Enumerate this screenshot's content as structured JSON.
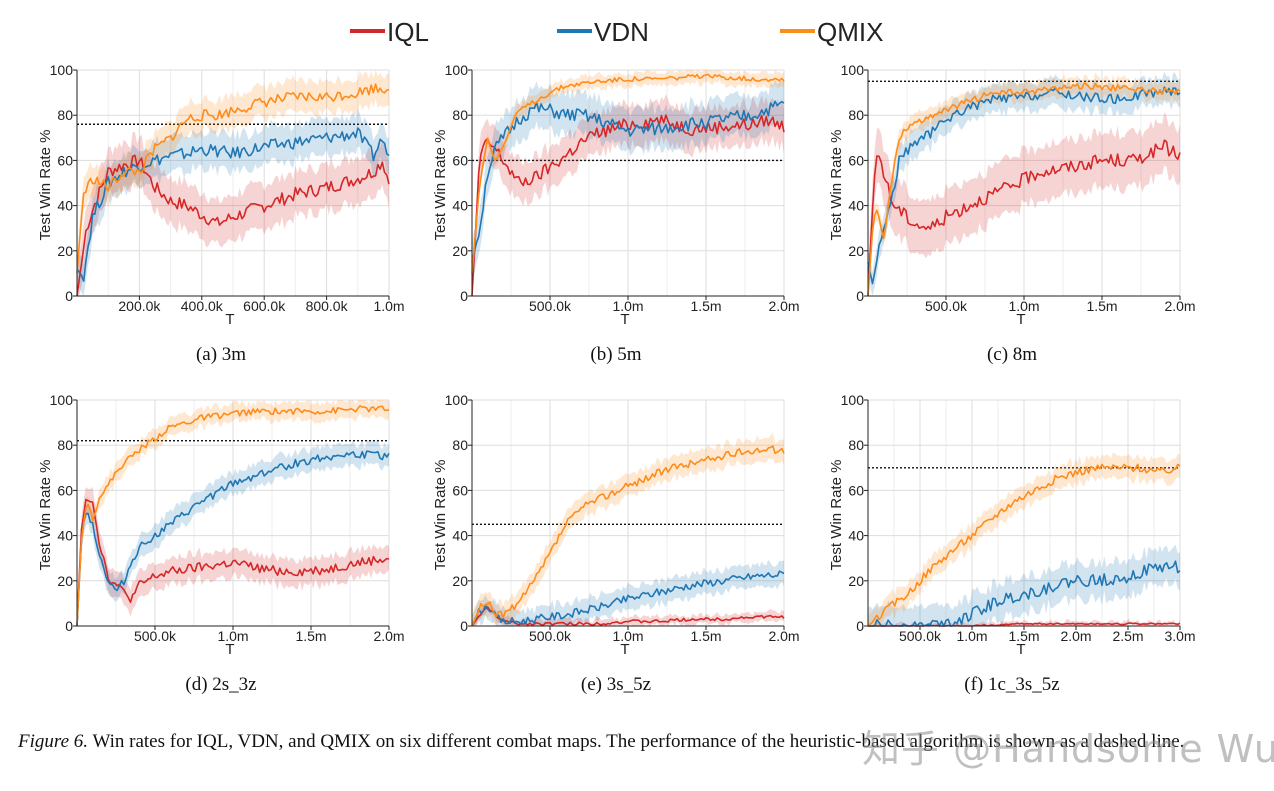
{
  "legend": [
    {
      "name": "IQL",
      "color": "#d62728"
    },
    {
      "name": "VDN",
      "color": "#1f77b4"
    },
    {
      "name": "QMIX",
      "color": "#ff8c1a"
    }
  ],
  "caption": {
    "figure_label": "Figure 6.",
    "text": "Win rates for IQL, VDN, and QMIX on six different combat maps. The performance of the heuristic-based algorithm is shown as a dashed line."
  },
  "watermark": "知乎 @Handsome Wu",
  "chart_data": [
    {
      "type": "line",
      "subtitle": "(a)  3m",
      "xlabel": "T",
      "ylabel": "Test Win Rate %",
      "xlim": [
        0,
        1.0
      ],
      "ylim": [
        0,
        100
      ],
      "xticks": [
        0.2,
        0.4,
        0.6,
        0.8,
        1.0
      ],
      "xtick_labels": [
        "200.0k",
        "400.0k",
        "600.0k",
        "800.0k",
        "1.0m"
      ],
      "yticks": [
        0,
        20,
        40,
        60,
        80,
        100
      ],
      "ytick_labels": [
        "0",
        "20",
        "40",
        "60",
        "80",
        "100"
      ],
      "heuristic": 76,
      "series": [
        {
          "name": "IQL",
          "x": [
            0,
            0.03,
            0.06,
            0.1,
            0.15,
            0.2,
            0.25,
            0.3,
            0.35,
            0.4,
            0.45,
            0.5,
            0.6,
            0.7,
            0.8,
            0.9,
            0.95,
            0.98,
            1.0
          ],
          "y": [
            0,
            30,
            42,
            55,
            58,
            60,
            48,
            42,
            40,
            36,
            32,
            35,
            40,
            45,
            48,
            52,
            55,
            60,
            50
          ],
          "band": 10
        },
        {
          "name": "VDN",
          "x": [
            0,
            0.02,
            0.05,
            0.1,
            0.15,
            0.2,
            0.25,
            0.3,
            0.35,
            0.4,
            0.5,
            0.6,
            0.7,
            0.8,
            0.9,
            0.95,
            0.98,
            1.0
          ],
          "y": [
            12,
            8,
            35,
            50,
            55,
            58,
            60,
            62,
            63,
            65,
            63,
            66,
            68,
            70,
            72,
            62,
            70,
            60
          ],
          "band": 8
        },
        {
          "name": "QMIX",
          "x": [
            0,
            0.02,
            0.05,
            0.1,
            0.15,
            0.2,
            0.25,
            0.3,
            0.35,
            0.4,
            0.45,
            0.5,
            0.6,
            0.7,
            0.8,
            0.9,
            0.95,
            1.0
          ],
          "y": [
            10,
            45,
            52,
            48,
            55,
            55,
            65,
            70,
            78,
            80,
            80,
            82,
            86,
            88,
            88,
            90,
            92,
            92
          ],
          "band": 7
        }
      ]
    },
    {
      "type": "line",
      "subtitle": "(b)  5m",
      "xlabel": "T",
      "ylabel": "Test Win Rate %",
      "xlim": [
        0,
        2.0
      ],
      "ylim": [
        0,
        100
      ],
      "xticks": [
        0.5,
        1.0,
        1.5,
        2.0
      ],
      "xtick_labels": [
        "500.0k",
        "1.0m",
        "1.5m",
        "2.0m"
      ],
      "yticks": [
        0,
        20,
        40,
        60,
        80,
        100
      ],
      "ytick_labels": [
        "0",
        "20",
        "40",
        "60",
        "80",
        "100"
      ],
      "heuristic": 60,
      "series": [
        {
          "name": "IQL",
          "x": [
            0,
            0.05,
            0.1,
            0.15,
            0.2,
            0.25,
            0.3,
            0.4,
            0.5,
            0.6,
            0.7,
            0.8,
            1.0,
            1.2,
            1.4,
            1.6,
            1.8,
            1.9,
            2.0
          ],
          "y": [
            0,
            62,
            68,
            65,
            60,
            55,
            50,
            52,
            57,
            62,
            68,
            72,
            76,
            78,
            74,
            75,
            76,
            78,
            75
          ],
          "band": 9
        },
        {
          "name": "VDN",
          "x": [
            0,
            0.05,
            0.1,
            0.15,
            0.2,
            0.3,
            0.4,
            0.5,
            0.6,
            0.7,
            0.8,
            1.0,
            1.2,
            1.4,
            1.6,
            1.8,
            2.0
          ],
          "y": [
            15,
            30,
            55,
            65,
            70,
            78,
            83,
            82,
            80,
            80,
            78,
            73,
            74,
            76,
            78,
            80,
            85
          ],
          "band": 9
        },
        {
          "name": "QMIX",
          "x": [
            0,
            0.05,
            0.1,
            0.15,
            0.2,
            0.25,
            0.3,
            0.4,
            0.5,
            0.6,
            0.8,
            1.0,
            1.2,
            1.4,
            1.6,
            1.8,
            2.0
          ],
          "y": [
            10,
            50,
            70,
            60,
            66,
            75,
            82,
            86,
            90,
            93,
            95,
            96,
            96,
            97,
            97,
            96,
            96
          ],
          "band": 3
        }
      ]
    },
    {
      "type": "line",
      "subtitle": "(c)  8m",
      "xlabel": "T",
      "ylabel": "Test Win Rate %",
      "xlim": [
        0,
        2.0
      ],
      "ylim": [
        0,
        100
      ],
      "xticks": [
        0.5,
        1.0,
        1.5,
        2.0
      ],
      "xtick_labels": [
        "500.0k",
        "1.0m",
        "1.5m",
        "2.0m"
      ],
      "yticks": [
        0,
        20,
        40,
        60,
        80,
        100
      ],
      "ytick_labels": [
        "0",
        "20",
        "40",
        "60",
        "80",
        "100"
      ],
      "heuristic": 95,
      "series": [
        {
          "name": "IQL",
          "x": [
            0,
            0.03,
            0.06,
            0.1,
            0.15,
            0.2,
            0.3,
            0.4,
            0.5,
            0.7,
            0.9,
            1.1,
            1.3,
            1.5,
            1.7,
            1.9,
            2.0
          ],
          "y": [
            0,
            40,
            65,
            55,
            42,
            38,
            32,
            30,
            35,
            42,
            48,
            55,
            57,
            60,
            60,
            66,
            62
          ],
          "band": 12
        },
        {
          "name": "VDN",
          "x": [
            0,
            0.03,
            0.06,
            0.1,
            0.15,
            0.2,
            0.3,
            0.4,
            0.5,
            0.6,
            0.8,
            1.0,
            1.2,
            1.4,
            1.6,
            1.8,
            2.0
          ],
          "y": [
            15,
            5,
            18,
            30,
            42,
            60,
            68,
            72,
            78,
            82,
            87,
            88,
            90,
            88,
            87,
            90,
            91
          ],
          "band": 6
        },
        {
          "name": "QMIX",
          "x": [
            0,
            0.03,
            0.06,
            0.1,
            0.15,
            0.2,
            0.25,
            0.3,
            0.4,
            0.5,
            0.6,
            0.8,
            1.0,
            1.2,
            1.4,
            1.6,
            1.8,
            2.0
          ],
          "y": [
            0,
            30,
            40,
            25,
            50,
            70,
            75,
            76,
            80,
            82,
            85,
            90,
            90,
            92,
            93,
            92,
            91,
            90
          ],
          "band": 4
        }
      ]
    },
    {
      "type": "line",
      "subtitle": "(d)  2s_3z",
      "xlabel": "T",
      "ylabel": "Test Win Rate %",
      "xlim": [
        0,
        2.0
      ],
      "ylim": [
        0,
        100
      ],
      "xticks": [
        0.5,
        1.0,
        1.5,
        2.0
      ],
      "xtick_labels": [
        "500.0k",
        "1.0m",
        "1.5m",
        "2.0m"
      ],
      "yticks": [
        0,
        20,
        40,
        60,
        80,
        100
      ],
      "ytick_labels": [
        "0",
        "20",
        "40",
        "60",
        "80",
        "100"
      ],
      "heuristic": 82,
      "series": [
        {
          "name": "IQL",
          "x": [
            0,
            0.03,
            0.06,
            0.1,
            0.15,
            0.2,
            0.25,
            0.3,
            0.35,
            0.4,
            0.5,
            0.6,
            0.8,
            1.0,
            1.2,
            1.4,
            1.6,
            1.8,
            2.0
          ],
          "y": [
            0,
            45,
            58,
            55,
            35,
            22,
            18,
            15,
            12,
            18,
            22,
            24,
            26,
            28,
            25,
            24,
            25,
            28,
            30
          ],
          "band": 6
        },
        {
          "name": "VDN",
          "x": [
            0,
            0.03,
            0.06,
            0.1,
            0.15,
            0.2,
            0.25,
            0.3,
            0.35,
            0.4,
            0.5,
            0.6,
            0.8,
            1.0,
            1.2,
            1.4,
            1.6,
            1.8,
            2.0
          ],
          "y": [
            0,
            40,
            52,
            45,
            30,
            20,
            15,
            20,
            28,
            35,
            40,
            45,
            55,
            63,
            68,
            72,
            75,
            76,
            75
          ],
          "band": 5
        },
        {
          "name": "QMIX",
          "x": [
            0,
            0.03,
            0.06,
            0.1,
            0.15,
            0.2,
            0.25,
            0.3,
            0.4,
            0.5,
            0.6,
            0.8,
            1.0,
            1.2,
            1.4,
            1.6,
            1.8,
            2.0
          ],
          "y": [
            0,
            40,
            55,
            48,
            58,
            62,
            68,
            72,
            78,
            83,
            88,
            92,
            94,
            95,
            95,
            95,
            96,
            96
          ],
          "band": 4
        }
      ]
    },
    {
      "type": "line",
      "subtitle": "(e)  3s_5z",
      "xlabel": "T",
      "ylabel": "Test Win Rate %",
      "xlim": [
        0,
        2.0
      ],
      "ylim": [
        0,
        100
      ],
      "xticks": [
        0.5,
        1.0,
        1.5,
        2.0
      ],
      "xtick_labels": [
        "500.0k",
        "1.0m",
        "1.5m",
        "2.0m"
      ],
      "yticks": [
        0,
        20,
        40,
        60,
        80,
        100
      ],
      "ytick_labels": [
        "0",
        "20",
        "40",
        "60",
        "80",
        "100"
      ],
      "heuristic": 45,
      "series": [
        {
          "name": "IQL",
          "x": [
            0,
            0.05,
            0.1,
            0.15,
            0.2,
            0.3,
            0.5,
            0.8,
            1.0,
            1.2,
            1.4,
            1.6,
            1.8,
            2.0
          ],
          "y": [
            0,
            5,
            8,
            5,
            2,
            1,
            1,
            1,
            2,
            2,
            3,
            3,
            4,
            4
          ],
          "band": 2
        },
        {
          "name": "VDN",
          "x": [
            0,
            0.05,
            0.1,
            0.15,
            0.2,
            0.3,
            0.4,
            0.6,
            0.8,
            1.0,
            1.2,
            1.4,
            1.6,
            1.8,
            2.0
          ],
          "y": [
            0,
            7,
            9,
            4,
            2,
            2,
            3,
            5,
            8,
            12,
            15,
            18,
            20,
            22,
            23
          ],
          "band": 5
        },
        {
          "name": "QMIX",
          "x": [
            0,
            0.05,
            0.1,
            0.15,
            0.2,
            0.3,
            0.4,
            0.5,
            0.6,
            0.7,
            0.8,
            1.0,
            1.2,
            1.4,
            1.6,
            1.8,
            2.0
          ],
          "y": [
            0,
            8,
            10,
            6,
            5,
            10,
            20,
            32,
            45,
            52,
            56,
            62,
            68,
            72,
            75,
            78,
            78
          ],
          "band": 5
        }
      ]
    },
    {
      "type": "line",
      "subtitle": "(f)  1c_3s_5z",
      "xlabel": "T",
      "ylabel": "Test Win Rate %",
      "xlim": [
        0,
        3.0
      ],
      "ylim": [
        0,
        100
      ],
      "xticks": [
        0.5,
        1.0,
        1.5,
        2.0,
        2.5,
        3.0
      ],
      "xtick_labels": [
        "500.0k",
        "1.0m",
        "1.5m",
        "2.0m",
        "2.5m",
        "3.0m"
      ],
      "yticks": [
        0,
        20,
        40,
        60,
        80,
        100
      ],
      "ytick_labels": [
        "0",
        "20",
        "40",
        "60",
        "80",
        "100"
      ],
      "heuristic": 70,
      "series": [
        {
          "name": "IQL",
          "x": [
            0,
            0.5,
            1.0,
            1.5,
            2.0,
            2.5,
            3.0
          ],
          "y": [
            0,
            0,
            0,
            1,
            1,
            1,
            1
          ],
          "band": 1
        },
        {
          "name": "VDN",
          "x": [
            0,
            0.5,
            0.8,
            1.0,
            1.2,
            1.4,
            1.6,
            1.8,
            2.0,
            2.2,
            2.5,
            2.8,
            3.0
          ],
          "y": [
            0,
            0,
            2,
            5,
            10,
            13,
            15,
            18,
            20,
            20,
            22,
            26,
            26
          ],
          "band": 8
        },
        {
          "name": "QMIX",
          "x": [
            0,
            0.2,
            0.4,
            0.6,
            0.8,
            1.0,
            1.2,
            1.4,
            1.6,
            1.8,
            2.0,
            2.2,
            2.4,
            2.6,
            2.8,
            3.0
          ],
          "y": [
            0,
            8,
            15,
            25,
            33,
            40,
            48,
            55,
            60,
            65,
            68,
            70,
            70,
            70,
            68,
            70
          ],
          "band": 5
        }
      ]
    }
  ]
}
